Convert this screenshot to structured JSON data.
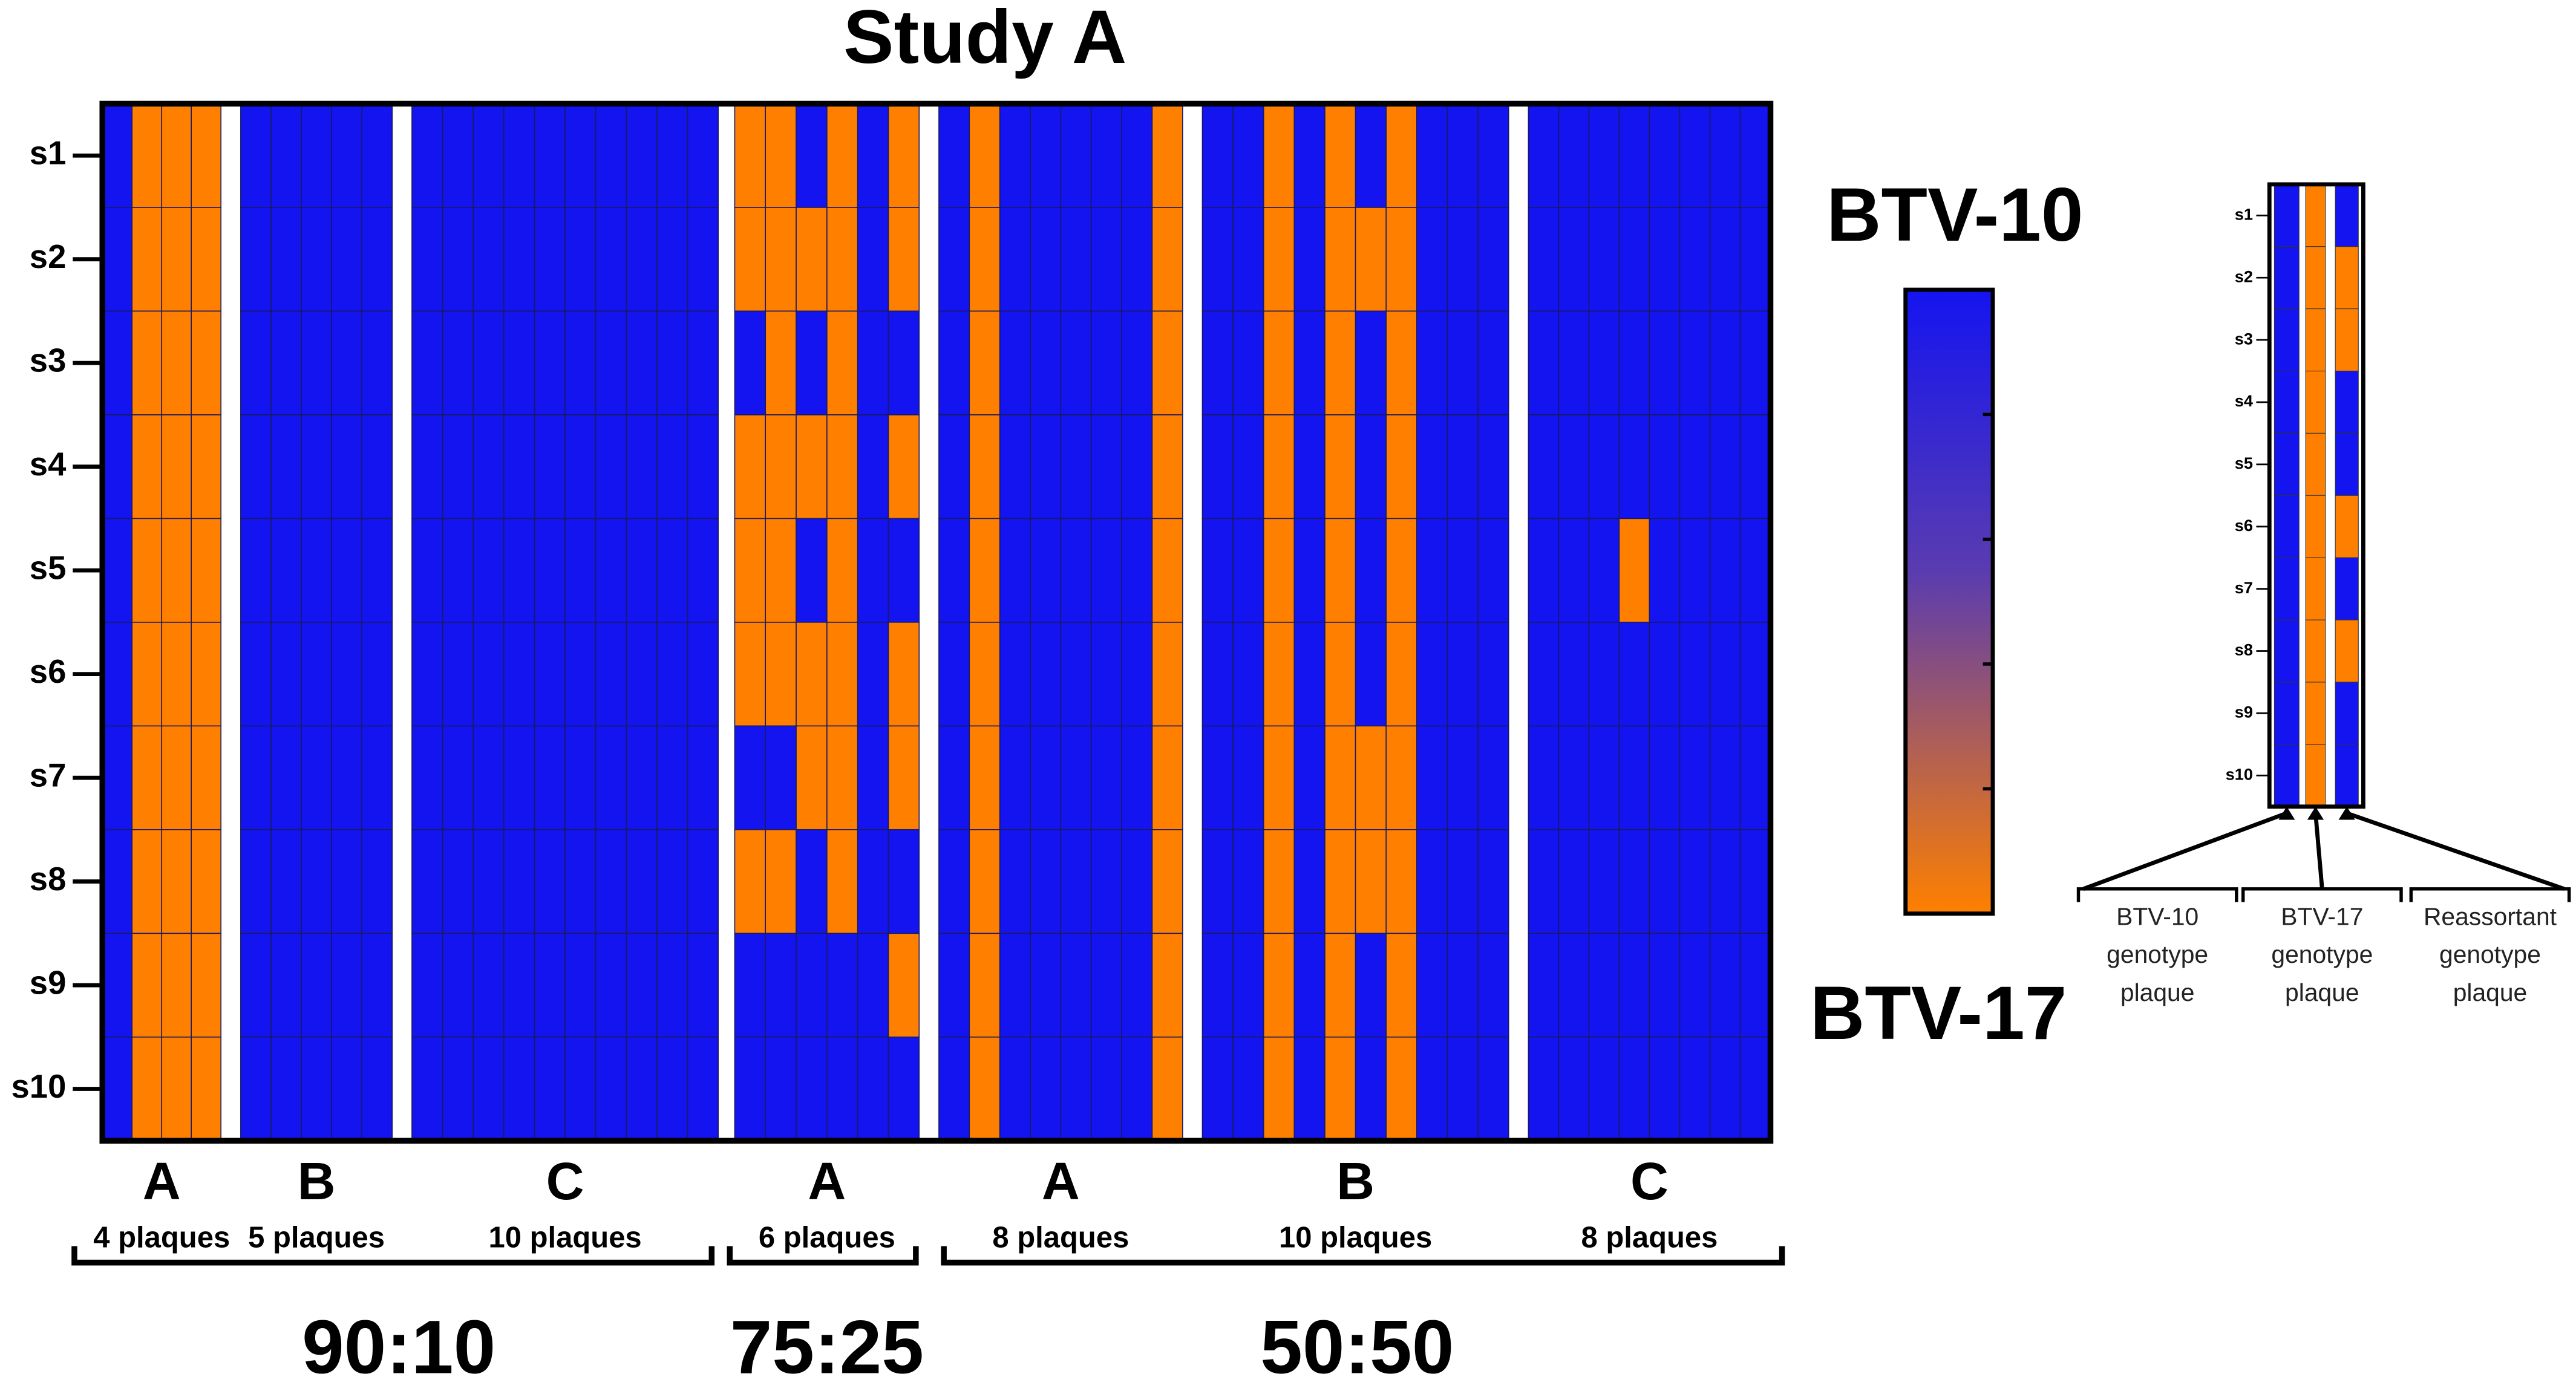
{
  "chart_data": {
    "type": "heatmap",
    "title": "Study A",
    "rows": [
      "s1",
      "s2",
      "s3",
      "s4",
      "s5",
      "s6",
      "s7",
      "s8",
      "s9",
      "s10"
    ],
    "colors": [
      "#1414f0",
      "#ff8000"
    ],
    "colorbar": {
      "top_label": "BTV-10",
      "bottom_label": "BTV-17"
    },
    "groups": [
      {
        "ratio": "90:10",
        "sets": [
          {
            "letter": "A",
            "plaques_label": "4 plaques",
            "plaques": [
              [
                0,
                0,
                0,
                0,
                0,
                0,
                0,
                0,
                0,
                0
              ],
              [
                1,
                1,
                1,
                1,
                1,
                1,
                1,
                1,
                1,
                1
              ],
              [
                1,
                1,
                1,
                1,
                1,
                1,
                1,
                1,
                1,
                1
              ],
              [
                1,
                1,
                1,
                1,
                1,
                1,
                1,
                1,
                1,
                1
              ]
            ]
          },
          {
            "letter": "B",
            "plaques_label": "5 plaques",
            "plaques": [
              [
                0,
                0,
                0,
                0,
                0,
                0,
                0,
                0,
                0,
                0
              ],
              [
                0,
                0,
                0,
                0,
                0,
                0,
                0,
                0,
                0,
                0
              ],
              [
                0,
                0,
                0,
                0,
                0,
                0,
                0,
                0,
                0,
                0
              ],
              [
                0,
                0,
                0,
                0,
                0,
                0,
                0,
                0,
                0,
                0
              ],
              [
                0,
                0,
                0,
                0,
                0,
                0,
                0,
                0,
                0,
                0
              ]
            ]
          },
          {
            "letter": "C",
            "plaques_label": "10 plaques",
            "plaques": [
              [
                0,
                0,
                0,
                0,
                0,
                0,
                0,
                0,
                0,
                0
              ],
              [
                0,
                0,
                0,
                0,
                0,
                0,
                0,
                0,
                0,
                0
              ],
              [
                0,
                0,
                0,
                0,
                0,
                0,
                0,
                0,
                0,
                0
              ],
              [
                0,
                0,
                0,
                0,
                0,
                0,
                0,
                0,
                0,
                0
              ],
              [
                0,
                0,
                0,
                0,
                0,
                0,
                0,
                0,
                0,
                0
              ],
              [
                0,
                0,
                0,
                0,
                0,
                0,
                0,
                0,
                0,
                0
              ],
              [
                0,
                0,
                0,
                0,
                0,
                0,
                0,
                0,
                0,
                0
              ],
              [
                0,
                0,
                0,
                0,
                0,
                0,
                0,
                0,
                0,
                0
              ],
              [
                0,
                0,
                0,
                0,
                0,
                0,
                0,
                0,
                0,
                0
              ],
              [
                0,
                0,
                0,
                0,
                0,
                0,
                0,
                0,
                0,
                0
              ]
            ]
          }
        ]
      },
      {
        "ratio": "75:25",
        "sets": [
          {
            "letter": "A",
            "plaques_label": "6 plaques",
            "plaques": [
              [
                1,
                1,
                0,
                1,
                1,
                1,
                0,
                1,
                0,
                0
              ],
              [
                1,
                1,
                1,
                1,
                1,
                1,
                0,
                1,
                0,
                0
              ],
              [
                0,
                1,
                0,
                1,
                0,
                1,
                1,
                0,
                0,
                0
              ],
              [
                1,
                1,
                1,
                1,
                1,
                1,
                1,
                1,
                0,
                0
              ],
              [
                0,
                0,
                0,
                0,
                0,
                0,
                0,
                0,
                0,
                0
              ],
              [
                1,
                1,
                0,
                1,
                0,
                1,
                1,
                0,
                1,
                0
              ]
            ]
          }
        ]
      },
      {
        "ratio": "50:50",
        "sets": [
          {
            "letter": "A",
            "plaques_label": "8 plaques",
            "plaques": [
              [
                0,
                0,
                0,
                0,
                0,
                0,
                0,
                0,
                0,
                0
              ],
              [
                1,
                1,
                1,
                1,
                1,
                1,
                1,
                1,
                1,
                1
              ],
              [
                0,
                0,
                0,
                0,
                0,
                0,
                0,
                0,
                0,
                0
              ],
              [
                0,
                0,
                0,
                0,
                0,
                0,
                0,
                0,
                0,
                0
              ],
              [
                0,
                0,
                0,
                0,
                0,
                0,
                0,
                0,
                0,
                0
              ],
              [
                0,
                0,
                0,
                0,
                0,
                0,
                0,
                0,
                0,
                0
              ],
              [
                0,
                0,
                0,
                0,
                0,
                0,
                0,
                0,
                0,
                0
              ],
              [
                1,
                1,
                1,
                1,
                1,
                1,
                1,
                1,
                1,
                1
              ]
            ]
          },
          {
            "letter": "B",
            "plaques_label": "10 plaques",
            "plaques": [
              [
                0,
                0,
                0,
                0,
                0,
                0,
                0,
                0,
                0,
                0
              ],
              [
                0,
                0,
                0,
                0,
                0,
                0,
                0,
                0,
                0,
                0
              ],
              [
                1,
                1,
                1,
                1,
                1,
                1,
                1,
                1,
                1,
                1
              ],
              [
                0,
                0,
                0,
                0,
                0,
                0,
                0,
                0,
                0,
                0
              ],
              [
                1,
                1,
                1,
                1,
                1,
                1,
                1,
                1,
                1,
                1
              ],
              [
                0,
                1,
                0,
                0,
                0,
                0,
                1,
                1,
                0,
                0
              ],
              [
                1,
                1,
                1,
                1,
                1,
                1,
                1,
                1,
                1,
                1
              ],
              [
                0,
                0,
                0,
                0,
                0,
                0,
                0,
                0,
                0,
                0
              ],
              [
                0,
                0,
                0,
                0,
                0,
                0,
                0,
                0,
                0,
                0
              ],
              [
                0,
                0,
                0,
                0,
                0,
                0,
                0,
                0,
                0,
                0
              ]
            ]
          },
          {
            "letter": "C",
            "plaques_label": "8 plaques",
            "plaques": [
              [
                0,
                0,
                0,
                0,
                0,
                0,
                0,
                0,
                0,
                0
              ],
              [
                0,
                0,
                0,
                0,
                0,
                0,
                0,
                0,
                0,
                0
              ],
              [
                0,
                0,
                0,
                0,
                0,
                0,
                0,
                0,
                0,
                0
              ],
              [
                0,
                0,
                0,
                0,
                1,
                0,
                0,
                0,
                0,
                0
              ],
              [
                0,
                0,
                0,
                0,
                0,
                0,
                0,
                0,
                0,
                0
              ],
              [
                0,
                0,
                0,
                0,
                0,
                0,
                0,
                0,
                0,
                0
              ],
              [
                0,
                0,
                0,
                0,
                0,
                0,
                0,
                0,
                0,
                0
              ],
              [
                0,
                0,
                0,
                0,
                0,
                0,
                0,
                0,
                0,
                0
              ]
            ]
          }
        ]
      }
    ]
  },
  "inset": {
    "rows": [
      "s1",
      "s2",
      "s3",
      "s4",
      "s5",
      "s6",
      "s7",
      "s8",
      "s9",
      "s10"
    ],
    "columns": [
      {
        "caption": [
          "BTV-10",
          "genotype",
          "plaque"
        ],
        "values": [
          0,
          0,
          0,
          0,
          0,
          0,
          0,
          0,
          0,
          0
        ]
      },
      {
        "caption": [
          "BTV-17",
          "genotype",
          "plaque"
        ],
        "values": [
          1,
          1,
          1,
          1,
          1,
          1,
          1,
          1,
          1,
          1
        ]
      },
      {
        "caption": [
          "Reassortant",
          "genotype",
          "plaque"
        ],
        "values": [
          0,
          1,
          1,
          0,
          0,
          1,
          0,
          1,
          0,
          0
        ]
      }
    ]
  }
}
